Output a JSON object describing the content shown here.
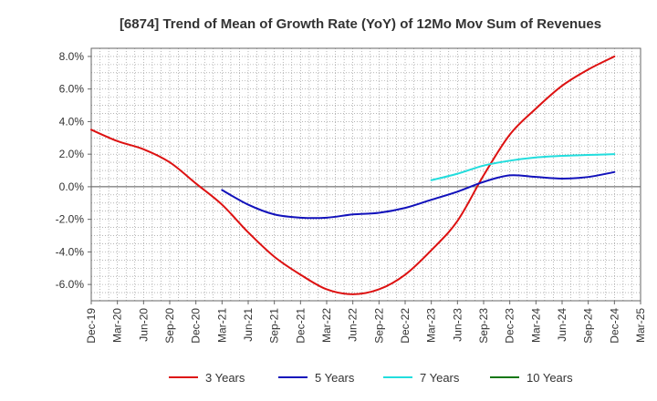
{
  "chart_data": {
    "type": "line",
    "title": "[6874]  Trend of Mean of Growth Rate (YoY) of 12Mo Mov Sum of Revenues",
    "xlabel": "",
    "ylabel": "",
    "ylim": [
      -7,
      8.5
    ],
    "y_ticks": [
      8,
      6,
      4,
      2,
      0,
      -2,
      -4,
      -6
    ],
    "y_tick_labels": [
      "8.0%",
      "6.0%",
      "4.0%",
      "2.0%",
      "0.0%",
      "-2.0%",
      "-4.0%",
      "-6.0%"
    ],
    "x_tick_labels": [
      "Dec-19",
      "Mar-20",
      "Jun-20",
      "Sep-20",
      "Dec-20",
      "Mar-21",
      "Jun-21",
      "Sep-21",
      "Dec-21",
      "Mar-22",
      "Jun-22",
      "Sep-22",
      "Dec-22",
      "Mar-23",
      "Jun-23",
      "Sep-23",
      "Dec-23",
      "Mar-24",
      "Jun-24",
      "Sep-24",
      "Dec-24",
      "Mar-25"
    ],
    "x_range": [
      0,
      63
    ],
    "grid": true,
    "legend_position": "bottom",
    "series": [
      {
        "name": "3 Years",
        "color": "#dd1111",
        "x": [
          0,
          3,
          6,
          9,
          12,
          15,
          18,
          21,
          24,
          27,
          30,
          33,
          36,
          39,
          42,
          45,
          48,
          51,
          54,
          57,
          60
        ],
        "values": [
          3.5,
          2.8,
          2.3,
          1.5,
          0.2,
          -1.1,
          -2.8,
          -4.3,
          -5.4,
          -6.3,
          -6.6,
          -6.3,
          -5.4,
          -3.9,
          -2.1,
          0.7,
          3.2,
          4.8,
          6.2,
          7.2,
          8.0
        ]
      },
      {
        "name": "5 Years",
        "color": "#1111bb",
        "x": [
          15,
          18,
          21,
          24,
          27,
          30,
          33,
          36,
          39,
          42,
          45,
          48,
          51,
          54,
          57,
          60
        ],
        "values": [
          -0.2,
          -1.1,
          -1.7,
          -1.9,
          -1.9,
          -1.7,
          -1.6,
          -1.3,
          -0.8,
          -0.3,
          0.3,
          0.7,
          0.6,
          0.5,
          0.6,
          0.9
        ]
      },
      {
        "name": "7 Years",
        "color": "#22dddd",
        "x": [
          39,
          42,
          45,
          48,
          51,
          54,
          57,
          60
        ],
        "values": [
          0.4,
          0.8,
          1.3,
          1.6,
          1.8,
          1.9,
          1.95,
          2.0
        ]
      },
      {
        "name": "10 Years",
        "color": "#117711",
        "x": [],
        "values": []
      }
    ]
  }
}
